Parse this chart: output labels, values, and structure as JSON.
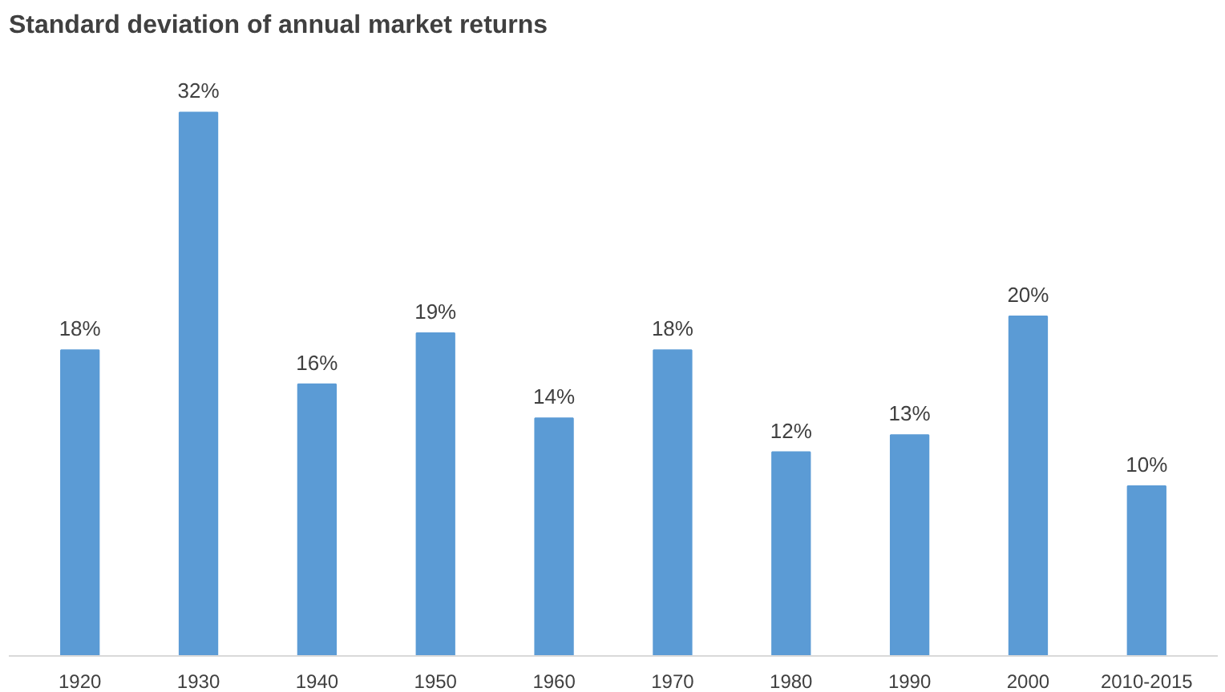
{
  "chart_data": {
    "type": "bar",
    "title": "Standard deviation of annual market returns",
    "categories": [
      "1920",
      "1930",
      "1940",
      "1950",
      "1960",
      "1970",
      "1980",
      "1990",
      "2000",
      "2010-2015"
    ],
    "values": [
      18,
      32,
      16,
      19,
      14,
      18,
      12,
      13,
      20,
      10
    ],
    "value_labels": [
      "18%",
      "32%",
      "16%",
      "19%",
      "14%",
      "18%",
      "12%",
      "13%",
      "20%",
      "10%"
    ],
    "color": "#5b9bd5"
  }
}
